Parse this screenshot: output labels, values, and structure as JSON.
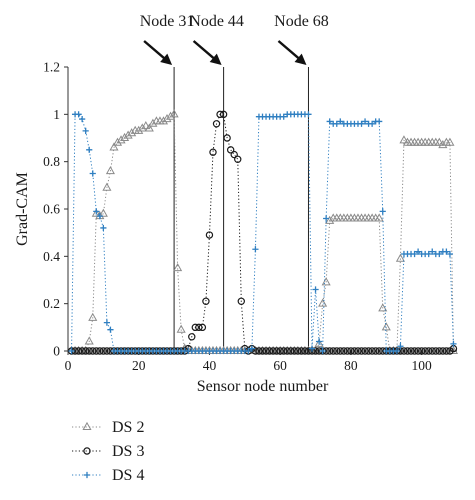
{
  "chart_data": {
    "type": "scatter",
    "xlabel": "Sensor node number",
    "ylabel": "Grad-CAM",
    "xlim": [
      0,
      110
    ],
    "ylim": [
      0,
      1.2
    ],
    "x_ticks": [
      0,
      20,
      40,
      60,
      80,
      100
    ],
    "y_ticks": [
      0,
      0.2,
      0.4,
      0.6,
      0.8,
      1,
      1.2
    ],
    "y_tick_labels": [
      "0",
      "0.2",
      "0.4",
      "0.6",
      "0.8",
      "1",
      "1.2"
    ],
    "grid": false,
    "legend_position": "bottom-left",
    "annotations": [
      {
        "text": "Node 31",
        "x": 30,
        "arrow": true
      },
      {
        "text": "Node 44",
        "x": 44,
        "arrow": true
      },
      {
        "text": "Node 68",
        "x": 68,
        "arrow": true
      }
    ],
    "series": [
      {
        "name": "DS 2",
        "marker": "triangle",
        "color": "#8a8a8a",
        "points": [
          [
            1,
            0
          ],
          [
            2,
            0
          ],
          [
            3,
            0
          ],
          [
            4,
            0
          ],
          [
            5,
            0
          ],
          [
            6,
            0.04
          ],
          [
            7,
            0.14
          ],
          [
            8,
            0.58
          ],
          [
            9,
            0.57
          ],
          [
            10,
            0.58
          ],
          [
            11,
            0.69
          ],
          [
            12,
            0.76
          ],
          [
            13,
            0.86
          ],
          [
            14,
            0.88
          ],
          [
            15,
            0.89
          ],
          [
            16,
            0.9
          ],
          [
            17,
            0.91
          ],
          [
            18,
            0.92
          ],
          [
            19,
            0.93
          ],
          [
            20,
            0.93
          ],
          [
            21,
            0.94
          ],
          [
            22,
            0.95
          ],
          [
            23,
            0.94
          ],
          [
            24,
            0.96
          ],
          [
            25,
            0.97
          ],
          [
            26,
            0.97
          ],
          [
            27,
            0.97
          ],
          [
            28,
            0.98
          ],
          [
            29,
            0.99
          ],
          [
            30,
            1.0
          ],
          [
            31,
            0.35
          ],
          [
            32,
            0.09
          ],
          [
            33,
            0.01
          ],
          [
            34,
            0
          ],
          [
            35,
            0
          ],
          [
            36,
            0
          ],
          [
            37,
            0
          ],
          [
            38,
            0
          ],
          [
            39,
            0
          ],
          [
            40,
            0
          ],
          [
            41,
            0
          ],
          [
            42,
            0
          ],
          [
            43,
            0
          ],
          [
            44,
            0
          ],
          [
            45,
            0
          ],
          [
            46,
            0
          ],
          [
            47,
            0
          ],
          [
            48,
            0
          ],
          [
            49,
            0
          ],
          [
            50,
            0
          ],
          [
            51,
            0
          ],
          [
            52,
            0
          ],
          [
            53,
            0
          ],
          [
            54,
            0
          ],
          [
            55,
            0
          ],
          [
            56,
            0
          ],
          [
            57,
            0
          ],
          [
            58,
            0
          ],
          [
            59,
            0
          ],
          [
            60,
            0
          ],
          [
            61,
            0
          ],
          [
            62,
            0
          ],
          [
            63,
            0
          ],
          [
            64,
            0
          ],
          [
            65,
            0
          ],
          [
            66,
            0
          ],
          [
            67,
            0
          ],
          [
            68,
            0
          ],
          [
            69,
            0
          ],
          [
            70,
            0
          ],
          [
            71,
            0.03
          ],
          [
            72,
            0.2
          ],
          [
            73,
            0.29
          ],
          [
            74,
            0.55
          ],
          [
            75,
            0.56
          ],
          [
            76,
            0.56
          ],
          [
            77,
            0.56
          ],
          [
            78,
            0.56
          ],
          [
            79,
            0.56
          ],
          [
            80,
            0.56
          ],
          [
            81,
            0.56
          ],
          [
            82,
            0.56
          ],
          [
            83,
            0.56
          ],
          [
            84,
            0.56
          ],
          [
            85,
            0.56
          ],
          [
            86,
            0.56
          ],
          [
            87,
            0.56
          ],
          [
            88,
            0.56
          ],
          [
            89,
            0.18
          ],
          [
            90,
            0.1
          ],
          [
            91,
            0
          ],
          [
            92,
            0
          ],
          [
            93,
            0
          ],
          [
            94,
            0.39
          ],
          [
            95,
            0.89
          ],
          [
            96,
            0.88
          ],
          [
            97,
            0.88
          ],
          [
            98,
            0.88
          ],
          [
            99,
            0.88
          ],
          [
            100,
            0.88
          ],
          [
            101,
            0.88
          ],
          [
            102,
            0.88
          ],
          [
            103,
            0.88
          ],
          [
            104,
            0.88
          ],
          [
            105,
            0.88
          ],
          [
            106,
            0.87
          ],
          [
            107,
            0.88
          ],
          [
            108,
            0.88
          ],
          [
            109,
            0
          ]
        ]
      },
      {
        "name": "DS 3",
        "marker": "circle",
        "color": "#1a1a1a",
        "points": [
          [
            1,
            0
          ],
          [
            2,
            0
          ],
          [
            3,
            0
          ],
          [
            4,
            0
          ],
          [
            5,
            0
          ],
          [
            6,
            0
          ],
          [
            7,
            0
          ],
          [
            8,
            0
          ],
          [
            9,
            0
          ],
          [
            10,
            0
          ],
          [
            11,
            0
          ],
          [
            12,
            0
          ],
          [
            13,
            0
          ],
          [
            14,
            0
          ],
          [
            15,
            0
          ],
          [
            16,
            0
          ],
          [
            17,
            0
          ],
          [
            18,
            0
          ],
          [
            19,
            0
          ],
          [
            20,
            0
          ],
          [
            21,
            0
          ],
          [
            22,
            0
          ],
          [
            23,
            0
          ],
          [
            24,
            0
          ],
          [
            25,
            0
          ],
          [
            26,
            0
          ],
          [
            27,
            0
          ],
          [
            28,
            0
          ],
          [
            29,
            0
          ],
          [
            30,
            0
          ],
          [
            31,
            0
          ],
          [
            32,
            0
          ],
          [
            33,
            0
          ],
          [
            34,
            0.01
          ],
          [
            35,
            0.06
          ],
          [
            36,
            0.1
          ],
          [
            37,
            0.1
          ],
          [
            38,
            0.1
          ],
          [
            39,
            0.21
          ],
          [
            40,
            0.49
          ],
          [
            41,
            0.84
          ],
          [
            42,
            0.96
          ],
          [
            43,
            1.0
          ],
          [
            44,
            1.0
          ],
          [
            45,
            0.9
          ],
          [
            46,
            0.85
          ],
          [
            47,
            0.83
          ],
          [
            48,
            0.81
          ],
          [
            49,
            0.21
          ],
          [
            50,
            0.01
          ],
          [
            51,
            0
          ],
          [
            52,
            0.01
          ],
          [
            53,
            0
          ],
          [
            54,
            0
          ],
          [
            55,
            0
          ],
          [
            56,
            0
          ],
          [
            57,
            0
          ],
          [
            58,
            0
          ],
          [
            59,
            0
          ],
          [
            60,
            0
          ],
          [
            61,
            0
          ],
          [
            62,
            0
          ],
          [
            63,
            0
          ],
          [
            64,
            0
          ],
          [
            65,
            0
          ],
          [
            66,
            0
          ],
          [
            67,
            0
          ],
          [
            68,
            0
          ],
          [
            69,
            0
          ],
          [
            70,
            0
          ],
          [
            71,
            0
          ],
          [
            72,
            0
          ],
          [
            73,
            0
          ],
          [
            74,
            0
          ],
          [
            75,
            0
          ],
          [
            76,
            0
          ],
          [
            77,
            0
          ],
          [
            78,
            0
          ],
          [
            79,
            0
          ],
          [
            80,
            0
          ],
          [
            81,
            0
          ],
          [
            82,
            0
          ],
          [
            83,
            0
          ],
          [
            84,
            0
          ],
          [
            85,
            0
          ],
          [
            86,
            0
          ],
          [
            87,
            0
          ],
          [
            88,
            0
          ],
          [
            89,
            0
          ],
          [
            90,
            0
          ],
          [
            91,
            0
          ],
          [
            92,
            0
          ],
          [
            93,
            0
          ],
          [
            94,
            0
          ],
          [
            95,
            0
          ],
          [
            96,
            0
          ],
          [
            97,
            0
          ],
          [
            98,
            0
          ],
          [
            99,
            0
          ],
          [
            100,
            0
          ],
          [
            101,
            0
          ],
          [
            102,
            0
          ],
          [
            103,
            0
          ],
          [
            104,
            0
          ],
          [
            105,
            0
          ],
          [
            106,
            0
          ],
          [
            107,
            0
          ],
          [
            108,
            0
          ],
          [
            109,
            0.01
          ]
        ]
      },
      {
        "name": "DS 4",
        "marker": "plus",
        "color": "#2f7fc1",
        "points": [
          [
            1,
            0
          ],
          [
            2,
            1.0
          ],
          [
            3,
            1.0
          ],
          [
            4,
            0.98
          ],
          [
            5,
            0.93
          ],
          [
            6,
            0.85
          ],
          [
            7,
            0.75
          ],
          [
            8,
            0.59
          ],
          [
            9,
            0.57
          ],
          [
            10,
            0.52
          ],
          [
            11,
            0.12
          ],
          [
            12,
            0.09
          ],
          [
            13,
            0
          ],
          [
            14,
            0
          ],
          [
            15,
            0
          ],
          [
            16,
            0
          ],
          [
            17,
            0
          ],
          [
            18,
            0
          ],
          [
            19,
            0
          ],
          [
            20,
            0
          ],
          [
            21,
            0
          ],
          [
            22,
            0
          ],
          [
            23,
            0
          ],
          [
            24,
            0
          ],
          [
            25,
            0
          ],
          [
            26,
            0
          ],
          [
            27,
            0
          ],
          [
            28,
            0
          ],
          [
            29,
            0
          ],
          [
            30,
            0
          ],
          [
            31,
            0
          ],
          [
            32,
            0
          ],
          [
            33,
            0
          ],
          [
            34,
            0
          ],
          [
            35,
            0
          ],
          [
            36,
            0
          ],
          [
            37,
            0
          ],
          [
            38,
            0
          ],
          [
            39,
            0
          ],
          [
            40,
            0
          ],
          [
            41,
            0
          ],
          [
            42,
            0
          ],
          [
            43,
            0
          ],
          [
            44,
            0
          ],
          [
            45,
            0
          ],
          [
            46,
            0
          ],
          [
            47,
            0
          ],
          [
            48,
            0
          ],
          [
            49,
            0
          ],
          [
            50,
            0
          ],
          [
            51,
            0
          ],
          [
            52,
            0.01
          ],
          [
            53,
            0.43
          ],
          [
            54,
            0.99
          ],
          [
            55,
            0.99
          ],
          [
            56,
            0.99
          ],
          [
            57,
            0.99
          ],
          [
            58,
            0.99
          ],
          [
            59,
            0.99
          ],
          [
            60,
            0.99
          ],
          [
            61,
            0.99
          ],
          [
            62,
            1.0
          ],
          [
            63,
            1.0
          ],
          [
            64,
            1.0
          ],
          [
            65,
            1.0
          ],
          [
            66,
            1.0
          ],
          [
            67,
            1.0
          ],
          [
            68,
            1.0
          ],
          [
            69,
            0.01
          ],
          [
            70,
            0.26
          ],
          [
            71,
            0.04
          ],
          [
            72,
            0
          ],
          [
            73,
            0.56
          ],
          [
            74,
            0.97
          ],
          [
            75,
            0.96
          ],
          [
            76,
            0.96
          ],
          [
            77,
            0.97
          ],
          [
            78,
            0.96
          ],
          [
            79,
            0.96
          ],
          [
            80,
            0.96
          ],
          [
            81,
            0.96
          ],
          [
            82,
            0.96
          ],
          [
            83,
            0.96
          ],
          [
            84,
            0.97
          ],
          [
            85,
            0.96
          ],
          [
            86,
            0.96
          ],
          [
            87,
            0.97
          ],
          [
            88,
            0.97
          ],
          [
            89,
            0.59
          ],
          [
            90,
            0
          ],
          [
            91,
            0
          ],
          [
            92,
            0
          ],
          [
            93,
            0
          ],
          [
            94,
            0.02
          ],
          [
            95,
            0.41
          ],
          [
            96,
            0.41
          ],
          [
            97,
            0.41
          ],
          [
            98,
            0.41
          ],
          [
            99,
            0.42
          ],
          [
            100,
            0.41
          ],
          [
            101,
            0.41
          ],
          [
            102,
            0.41
          ],
          [
            103,
            0.42
          ],
          [
            104,
            0.41
          ],
          [
            105,
            0.41
          ],
          [
            106,
            0.42
          ],
          [
            107,
            0.42
          ],
          [
            108,
            0.41
          ],
          [
            109,
            0.03
          ]
        ]
      }
    ]
  }
}
